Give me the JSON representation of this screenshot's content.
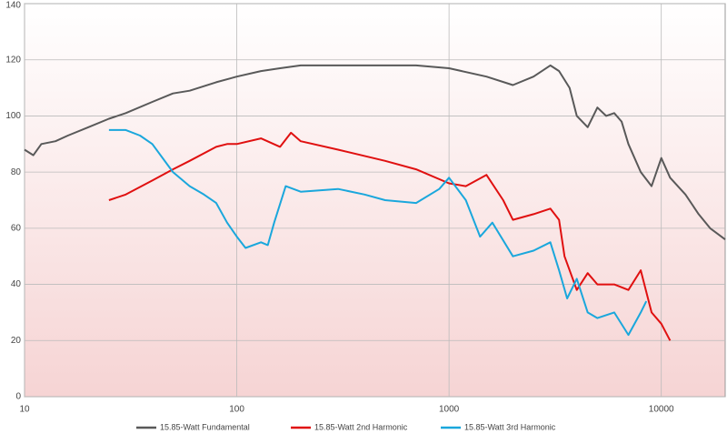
{
  "chart_data": {
    "type": "line",
    "xscale": "log",
    "grid": true,
    "legend": "bottom",
    "xlim": [
      10,
      20000
    ],
    "xticks": [
      10,
      100,
      1000,
      10000
    ],
    "ylim": [
      0,
      140
    ],
    "yticks": [
      0,
      20,
      40,
      60,
      80,
      100,
      120,
      140
    ],
    "series": [
      {
        "name": "15.85-Watt Fundamental",
        "color": "#595959",
        "x": [
          10,
          11,
          12,
          14,
          16,
          20,
          25,
          30,
          40,
          50,
          60,
          80,
          100,
          130,
          160,
          200,
          300,
          500,
          700,
          1000,
          1500,
          2000,
          2500,
          3000,
          3300,
          3700,
          4000,
          4500,
          5000,
          5500,
          6000,
          6500,
          7000,
          8000,
          9000,
          10000,
          11000,
          13000,
          15000,
          17000,
          20000
        ],
        "values": [
          88,
          86,
          90,
          91,
          93,
          96,
          99,
          101,
          105,
          108,
          109,
          112,
          114,
          116,
          117,
          118,
          118,
          118,
          118,
          117,
          114,
          111,
          114,
          118,
          116,
          110,
          100,
          96,
          103,
          100,
          101,
          98,
          90,
          80,
          75,
          85,
          78,
          72,
          65,
          60,
          56
        ]
      },
      {
        "name": "15.85-Watt 2nd Harmonic",
        "color": "#e01010",
        "x": [
          25,
          30,
          40,
          50,
          60,
          80,
          90,
          100,
          130,
          160,
          180,
          200,
          300,
          500,
          700,
          1000,
          1200,
          1500,
          1800,
          2000,
          2500,
          3000,
          3300,
          3500,
          4000,
          4500,
          5000,
          6000,
          7000,
          8000,
          9000,
          10000,
          11000
        ],
        "values": [
          70,
          72,
          77,
          81,
          84,
          89,
          90,
          90,
          92,
          89,
          94,
          91,
          88,
          84,
          81,
          76,
          75,
          79,
          70,
          63,
          65,
          67,
          63,
          50,
          38,
          44,
          40,
          40,
          38,
          45,
          30,
          26,
          20
        ]
      },
      {
        "name": "15.85-Watt 3rd Harmonic",
        "color": "#1aa7dc",
        "x": [
          25,
          30,
          35,
          40,
          50,
          60,
          70,
          80,
          90,
          100,
          110,
          130,
          140,
          150,
          170,
          200,
          300,
          400,
          500,
          700,
          900,
          1000,
          1200,
          1400,
          1600,
          2000,
          2500,
          3000,
          3300,
          3600,
          4000,
          4500,
          5000,
          6000,
          7000,
          8000,
          8500
        ],
        "values": [
          95,
          95,
          93,
          90,
          80,
          75,
          72,
          69,
          62,
          57,
          53,
          55,
          54,
          62,
          75,
          73,
          74,
          72,
          70,
          69,
          74,
          78,
          70,
          57,
          62,
          50,
          52,
          55,
          45,
          35,
          42,
          30,
          28,
          30,
          22,
          30,
          34
        ]
      }
    ]
  }
}
